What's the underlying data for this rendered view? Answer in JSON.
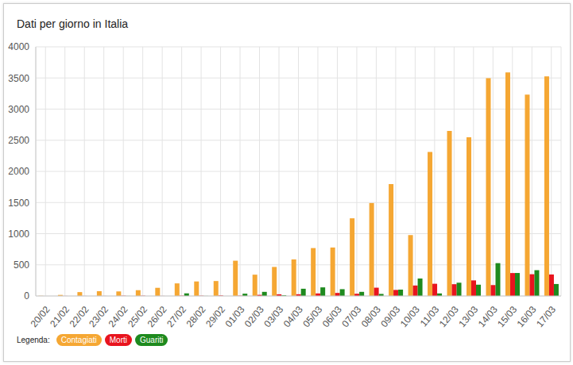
{
  "chart_data": {
    "type": "bar",
    "title": "Dati per giorno in Italia",
    "legend_title": "Legenda:",
    "categories": [
      "20/02",
      "21/02",
      "22/02",
      "23/02",
      "24/02",
      "25/02",
      "26/02",
      "27/02",
      "28/02",
      "29/02",
      "01/03",
      "02/03",
      "03/03",
      "04/03",
      "05/03",
      "06/03",
      "07/03",
      "08/03",
      "09/03",
      "10/03",
      "11/03",
      "12/03",
      "13/03",
      "14/03",
      "15/03",
      "16/03",
      "17/03"
    ],
    "series": [
      {
        "name": "Contagiati",
        "color": "#f5a733",
        "values": [
          3,
          17,
          62,
          77,
          73,
          93,
          131,
          202,
          233,
          240,
          566,
          342,
          466,
          587,
          769,
          778,
          1247,
          1492,
          1797,
          977,
          2313,
          2651,
          2547,
          3497,
          3590,
          3233,
          3526
        ]
      },
      {
        "name": "Morti",
        "color": "#e8141e",
        "values": [
          0,
          1,
          1,
          1,
          4,
          4,
          1,
          5,
          4,
          8,
          5,
          18,
          27,
          28,
          41,
          49,
          36,
          133,
          97,
          168,
          196,
          189,
          250,
          175,
          368,
          349,
          345
        ]
      },
      {
        "name": "Guariti",
        "color": "#1e8a1e",
        "values": [
          0,
          0,
          0,
          0,
          1,
          0,
          0,
          42,
          1,
          0,
          37,
          66,
          11,
          116,
          138,
          109,
          66,
          33,
          102,
          280,
          41,
          213,
          181,
          527,
          369,
          414,
          192
        ]
      }
    ],
    "ylim": [
      0,
      4000
    ],
    "yticks": [
      0,
      500,
      1000,
      1500,
      2000,
      2500,
      3000,
      3500,
      4000
    ],
    "grid": true,
    "legend": "bottom left"
  }
}
